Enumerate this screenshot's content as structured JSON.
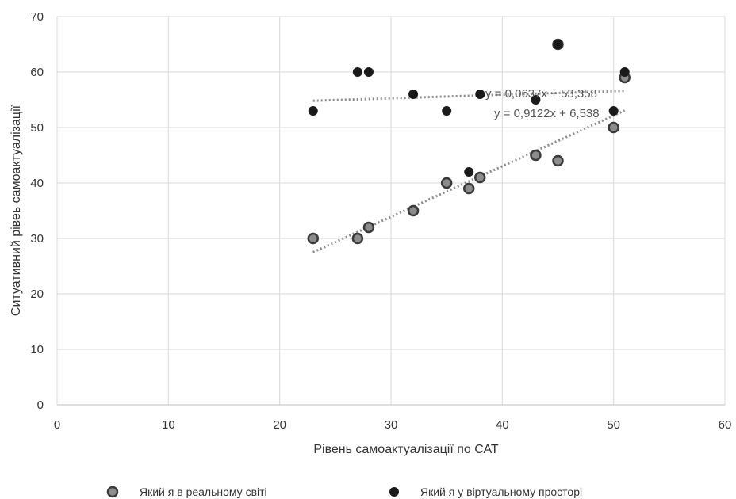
{
  "chart_data": {
    "type": "scatter",
    "xlabel": "Рівень самоактуалізації по САТ",
    "ylabel": "Ситуативний рівеь самоактуалізації",
    "xlim": [
      0,
      60
    ],
    "ylim": [
      0,
      70
    ],
    "xticks": [
      "0",
      "10",
      "20",
      "30",
      "40",
      "50",
      "60"
    ],
    "yticks": [
      "0",
      "10",
      "20",
      "30",
      "40",
      "50",
      "60",
      "70"
    ],
    "grid": true,
    "legend_position": "bottom",
    "series": [
      {
        "name": "Який я в реальному світі",
        "color": "#8c8c8c",
        "marker": "circle-outlined",
        "points": [
          {
            "x": 23,
            "y": 30
          },
          {
            "x": 27,
            "y": 30
          },
          {
            "x": 28,
            "y": 32
          },
          {
            "x": 32,
            "y": 35
          },
          {
            "x": 35,
            "y": 40
          },
          {
            "x": 37,
            "y": 39
          },
          {
            "x": 38,
            "y": 41
          },
          {
            "x": 43,
            "y": 45
          },
          {
            "x": 45,
            "y": 44
          },
          {
            "x": 45,
            "y": 65
          },
          {
            "x": 50,
            "y": 50
          },
          {
            "x": 51,
            "y": 59
          }
        ],
        "trendline": {
          "equation": "y = 0,9122x + 6,538",
          "slope": 0.9122,
          "intercept": 6.538,
          "x_range": [
            23,
            51
          ]
        }
      },
      {
        "name": "Який я у віртуальному просторі",
        "color": "#1a1a1a",
        "marker": "circle-filled",
        "points": [
          {
            "x": 23,
            "y": 53
          },
          {
            "x": 27,
            "y": 60
          },
          {
            "x": 28,
            "y": 60
          },
          {
            "x": 32,
            "y": 56
          },
          {
            "x": 35,
            "y": 53
          },
          {
            "x": 37,
            "y": 42
          },
          {
            "x": 38,
            "y": 56
          },
          {
            "x": 43,
            "y": 55
          },
          {
            "x": 45,
            "y": 65
          },
          {
            "x": 50,
            "y": 53
          },
          {
            "x": 51,
            "y": 60
          }
        ],
        "trendline": {
          "equation": "y = 0,0637x + 53,358",
          "slope": 0.0637,
          "intercept": 53.358,
          "x_range": [
            23,
            51
          ]
        }
      }
    ]
  }
}
